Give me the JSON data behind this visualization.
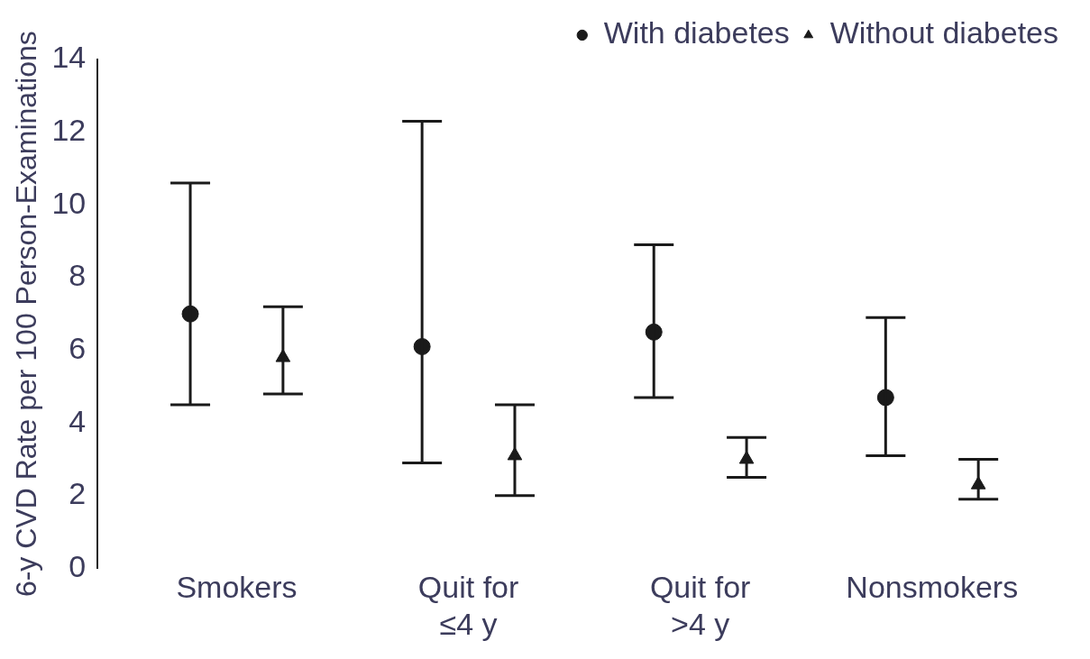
{
  "chart_data": {
    "type": "scatter",
    "ylabel": "6-y CVD Rate per 100 Person-Examinations",
    "categories": [
      "Smokers",
      "Quit for ≤4 y",
      "Quit for >4 y",
      "Nonsmokers"
    ],
    "series": [
      {
        "name": "With diabetes",
        "color": "#1a1a1a",
        "marker": "circle",
        "values": [
          7.0,
          6.1,
          6.5,
          4.7
        ],
        "errors": [
          [
            4.5,
            10.6
          ],
          [
            2.9,
            12.3
          ],
          [
            4.7,
            8.9
          ],
          [
            3.1,
            6.9
          ]
        ]
      },
      {
        "name": "Without diabetes",
        "color": "#1a1a1a",
        "marker": "triangle",
        "values": [
          5.8,
          3.1,
          3.0,
          2.3
        ],
        "errors": [
          [
            4.8,
            7.2
          ],
          [
            2.0,
            4.5
          ],
          [
            2.5,
            3.6
          ],
          [
            1.9,
            3.0
          ]
        ]
      }
    ],
    "ylim": [
      0,
      14
    ],
    "yticks": [
      0,
      2,
      4,
      6,
      8,
      10,
      12,
      14
    ],
    "grid": false,
    "legend": "top right"
  }
}
